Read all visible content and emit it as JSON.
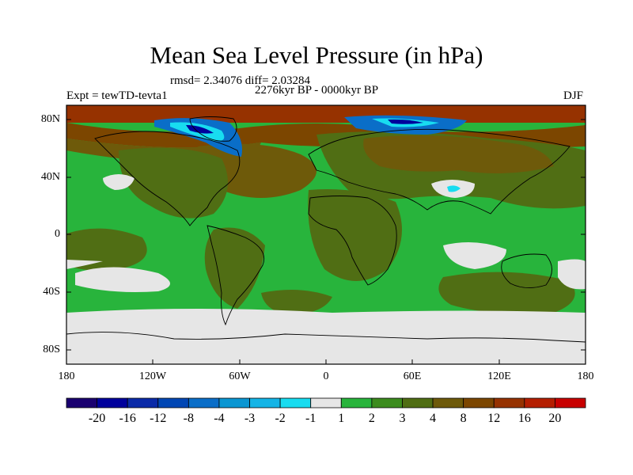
{
  "title": "Mean Sea Level Pressure (in hPa)",
  "stats_line": "rmsd= 2.34076  diff= 2.03284",
  "period": "2276kyr BP - 0000kyr BP",
  "experiment": "Expt = tewTD-tevta1",
  "season": "DJF",
  "y_axis_labels": [
    "80N",
    "40N",
    "0",
    "40S",
    "80S"
  ],
  "x_axis_labels": [
    "180",
    "120W",
    "60W",
    "0",
    "60E",
    "120E",
    "180"
  ],
  "colorbar": {
    "labels": [
      "-20",
      "-16",
      "-12",
      "-8",
      "-4",
      "-3",
      "-2",
      "-1",
      "1",
      "2",
      "3",
      "4",
      "8",
      "12",
      "16",
      "20"
    ],
    "colors": [
      "#1a0070",
      "#00009c",
      "#0a2aa8",
      "#0046b4",
      "#0a6ec8",
      "#0a96d2",
      "#14b4e6",
      "#18dcf0",
      "#e6e6e6",
      "#28b43c",
      "#3c8c1e",
      "#506e14",
      "#6e5a0a",
      "#7c4600",
      "#963200",
      "#b41e00",
      "#c80000"
    ]
  },
  "map_colors": {
    "ocean_green": "#28b43c",
    "mid_green": "#3c8c1e",
    "olive": "#506e14",
    "brown": "#6e5a0a",
    "dark_brown": "#7c4600",
    "rust": "#963200",
    "red": "#b41e00",
    "grey": "#e6e6e6",
    "blue": "#0a6ec8",
    "cyan": "#18dcf0",
    "navy": "#00009c"
  }
}
